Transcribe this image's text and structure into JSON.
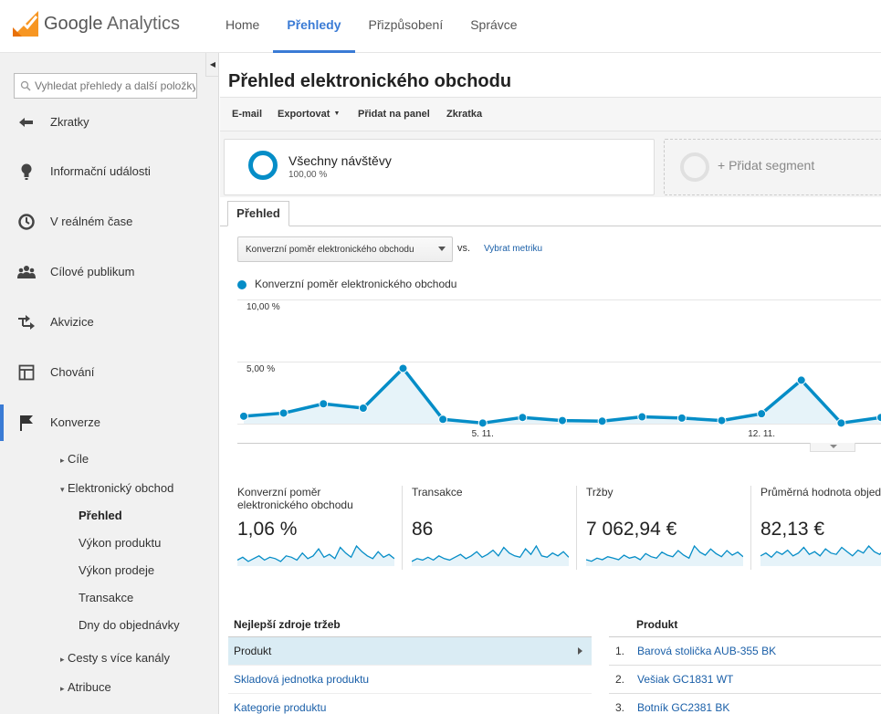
{
  "header": {
    "logo_google": "Google",
    "logo_analytics": "Analytics",
    "nav": [
      {
        "label": "Home",
        "active": false
      },
      {
        "label": "Přehledy",
        "active": true
      },
      {
        "label": "Přizpůsobení",
        "active": false
      },
      {
        "label": "Správce",
        "active": false
      }
    ]
  },
  "sidebar": {
    "search_placeholder": "Vyhledat přehledy a další položky",
    "items": [
      {
        "label": "Zkratky",
        "icon": "shortcut-arrow-icon"
      },
      {
        "label": "Informační události",
        "icon": "lightbulb-icon"
      },
      {
        "label": "V reálném čase",
        "icon": "clock-icon"
      },
      {
        "label": "Cílové publikum",
        "icon": "people-icon"
      },
      {
        "label": "Akvizice",
        "icon": "acquisition-arrows-icon"
      },
      {
        "label": "Chování",
        "icon": "layout-icon"
      },
      {
        "label": "Konverze",
        "icon": "flag-icon"
      }
    ],
    "sub_items": {
      "cile": "Cíle",
      "ecommerce": "Elektronický obchod",
      "prehled": "Přehled",
      "vykon_produktu": "Výkon produktu",
      "vykon_prodeje": "Výkon prodeje",
      "transakce": "Transakce",
      "dny": "Dny do objednávky",
      "cesty": "Cesty s více kanály",
      "atribuce": "Atribuce"
    }
  },
  "main": {
    "title": "Přehled elektronického obchodu",
    "toolbar": {
      "email": "E-mail",
      "export": "Exportovat",
      "add_dashboard": "Přidat na panel",
      "shortcut": "Zkratka"
    },
    "segment": {
      "name": "Všechny návštěvy",
      "share": "100,00 %",
      "add_label": "+ Přidat segment"
    },
    "tab_label": "Přehled",
    "metric_select": "Konverzní poměr elektronického obchodu",
    "vs": "vs.",
    "pick_metric": "Vybrat metriku"
  },
  "colors": {
    "accent": "#3a7bd5",
    "series": "#058dc7",
    "series_fill": "#e6f3f9"
  },
  "chart_data": {
    "type": "line",
    "series": [
      {
        "name": "Konverzní poměr elektronického obchodu",
        "values": [
          0.6,
          0.85,
          1.6,
          1.25,
          4.45,
          0.35,
          0.05,
          0.5,
          0.25,
          0.2,
          0.55,
          0.45,
          0.25,
          0.8,
          3.5,
          0.05,
          0.5
        ]
      }
    ],
    "x_tick_labels": [
      {
        "label": "5. 11.",
        "index": 6
      },
      {
        "label": "12. 11.",
        "index": 13
      }
    ],
    "y_tick_labels": [
      "10,00 %",
      "5,00 %"
    ],
    "ylim": [
      0,
      10
    ],
    "grid": true
  },
  "kpis": [
    {
      "label_line1": "Konverzní poměr",
      "label_line2": "elektronického obchodu",
      "value": "1,06 %",
      "spark": [
        3,
        5,
        2,
        4,
        6,
        3,
        5,
        4,
        2,
        6,
        5,
        3,
        8,
        4,
        6,
        11,
        5,
        7,
        4,
        12,
        8,
        5,
        13,
        9,
        6,
        4,
        9,
        5,
        7,
        4
      ]
    },
    {
      "label_line1": "Transakce",
      "label_line2": "",
      "value": "86",
      "spark": [
        2,
        4,
        3,
        5,
        3,
        6,
        4,
        3,
        5,
        7,
        4,
        6,
        9,
        5,
        7,
        10,
        6,
        12,
        8,
        6,
        5,
        11,
        7,
        13,
        6,
        5,
        8,
        6,
        9,
        5
      ]
    },
    {
      "label_line1": "Tržby",
      "label_line2": "",
      "value": "7 062,94 €",
      "spark": [
        3,
        2,
        4,
        3,
        5,
        4,
        3,
        6,
        4,
        5,
        3,
        7,
        5,
        4,
        8,
        6,
        5,
        9,
        6,
        4,
        12,
        8,
        6,
        10,
        7,
        5,
        9,
        6,
        8,
        5
      ]
    },
    {
      "label_line1": "Průměrná hodnota objednávky",
      "label_line2": "",
      "value": "82,13 €",
      "spark": [
        6,
        8,
        5,
        9,
        7,
        10,
        6,
        8,
        12,
        7,
        9,
        6,
        11,
        8,
        7,
        12,
        9,
        6,
        10,
        8,
        13,
        9,
        7,
        11,
        8,
        10,
        7,
        12,
        9,
        8
      ]
    }
  ],
  "top_sources": {
    "header": "Nejlepší zdroje tržeb",
    "rows": [
      "Produkt",
      "Skladová jednotka produktu",
      "Kategorie produktu"
    ],
    "selected_index": 0
  },
  "products": {
    "header": "Produkt",
    "rows": [
      {
        "num": "1.",
        "name": "Barová stolička AUB-355 BK"
      },
      {
        "num": "2.",
        "name": "Vešiak GC1831 WT"
      },
      {
        "num": "3.",
        "name": "Botník GC2381 BK"
      }
    ]
  }
}
